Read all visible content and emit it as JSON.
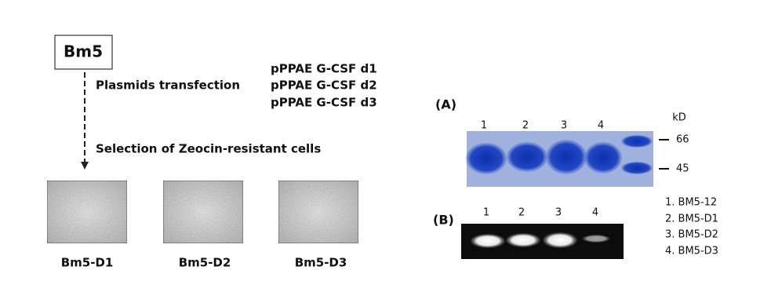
{
  "scheme": {
    "start": "Bm5",
    "step1": "Plasmids transfection",
    "plasmids": [
      "pPPAE G-CSF d1",
      "pPPAE G-CSF d2",
      "pPPAE G-CSF d3"
    ],
    "step2": "Selection of Zeocin-resistant cells",
    "cells": [
      "Bm5-D1",
      "Bm5-D2",
      "Bm5-D3"
    ]
  },
  "panel_a": {
    "label": "(A)",
    "lanes": [
      "1",
      "2",
      "3",
      "4"
    ],
    "unit": "kD",
    "markers": [
      "66",
      "45"
    ]
  },
  "panel_b": {
    "label": "(B)",
    "lanes": [
      "1",
      "2",
      "3",
      "4"
    ]
  },
  "legend": [
    "1. BM5-12",
    "2. BM5-D1",
    "3. BM5-D2",
    "4. BM5-D3"
  ]
}
